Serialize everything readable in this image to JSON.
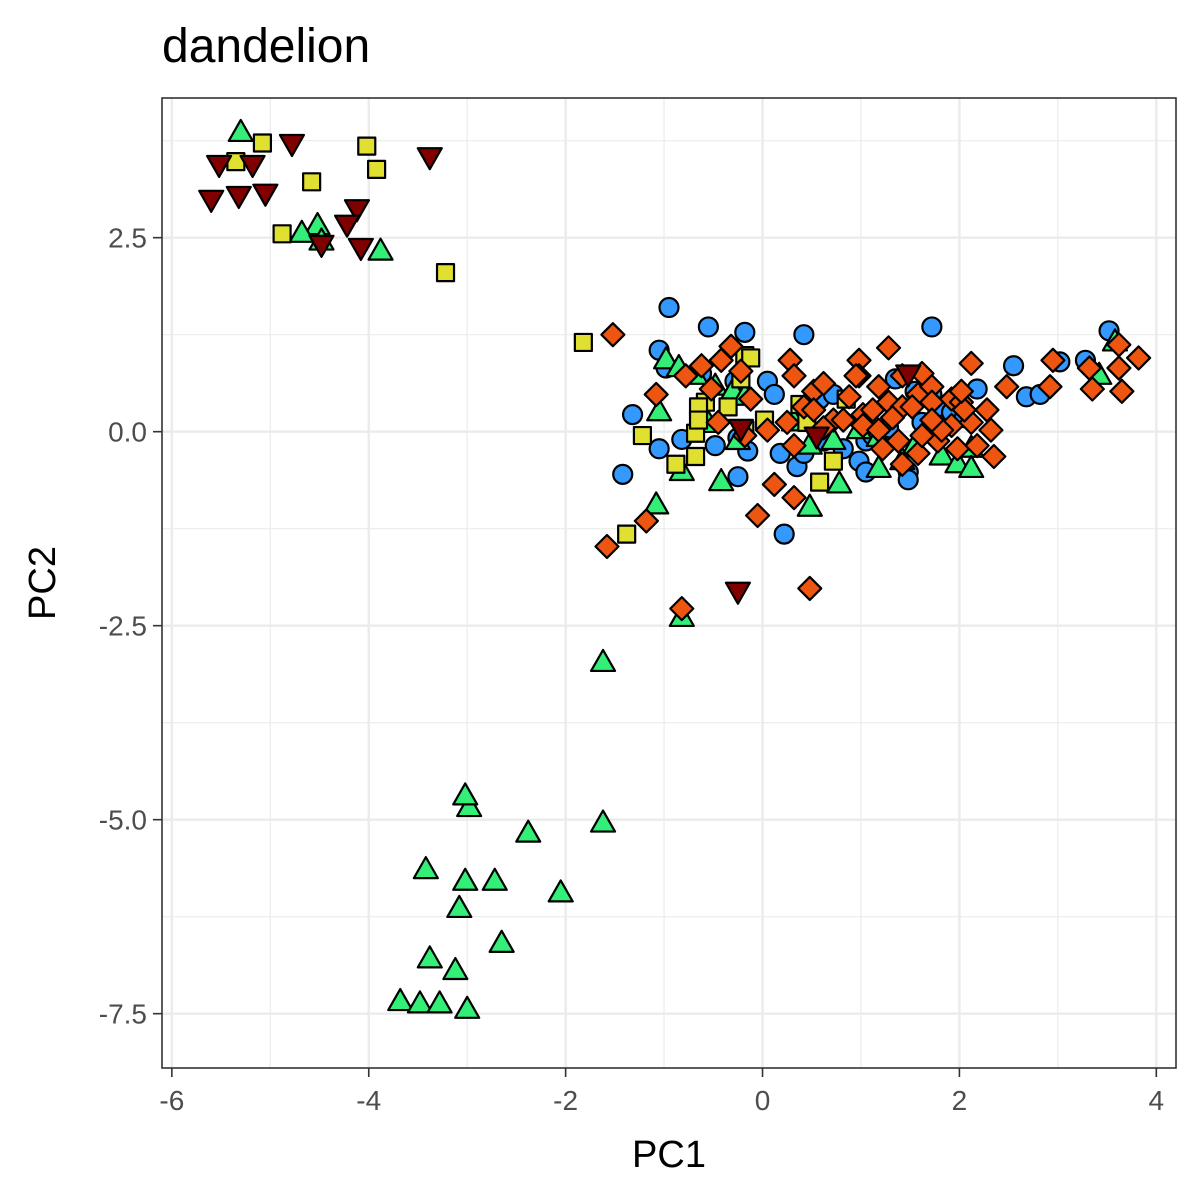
{
  "chart_data": {
    "type": "scatter",
    "title": "dandelion",
    "xlabel": "PC1",
    "ylabel": "PC2",
    "xlim": [
      -6.1,
      4.2
    ],
    "ylim": [
      -8.2,
      4.3
    ],
    "x_ticks": [
      -6,
      -4,
      -2,
      0,
      2,
      4
    ],
    "y_ticks": [
      2.5,
      0.0,
      -2.5,
      -5.0,
      -7.5
    ],
    "x_tick_labels": [
      "-6",
      "-4",
      "-2",
      "0",
      "2",
      "4"
    ],
    "y_tick_labels": [
      "2.5",
      "0.0",
      "-2.5",
      "-5.0",
      "-7.5"
    ],
    "grid": true,
    "legend": "none",
    "series": [
      {
        "shape": "circle",
        "color": "#3399ff",
        "x": [
          -0.95,
          -0.55,
          -0.18,
          0.42,
          1.72,
          -1.05,
          -0.98,
          -0.62,
          -0.28,
          0.05,
          0.12,
          0.58,
          0.72,
          1.35,
          1.55,
          1.72,
          2.18,
          2.55,
          2.68,
          2.82,
          3.02,
          3.28,
          3.52,
          -1.32,
          -1.05,
          -0.82,
          -0.48,
          -0.25,
          0.18,
          0.35,
          0.42,
          0.82,
          0.98,
          1.05,
          1.12,
          1.28,
          1.48,
          1.62,
          1.78,
          1.92,
          2.05,
          -1.42,
          -0.25,
          0.22,
          -0.15,
          0.62,
          1.05,
          1.48
        ],
        "y": [
          1.6,
          1.35,
          1.28,
          1.25,
          1.35,
          1.05,
          0.82,
          0.75,
          0.65,
          0.65,
          0.48,
          0.42,
          0.48,
          0.68,
          0.52,
          0.48,
          0.55,
          0.85,
          0.45,
          0.48,
          0.9,
          0.92,
          1.3,
          0.22,
          -0.22,
          -0.1,
          -0.18,
          -0.08,
          -0.28,
          -0.45,
          -0.28,
          -0.22,
          -0.38,
          -0.12,
          -0.05,
          0.05,
          -0.52,
          0.12,
          0.32,
          0.25,
          0.18,
          -0.55,
          -0.58,
          -1.32,
          -0.25,
          -0.12,
          -0.52,
          -0.62
        ]
      },
      {
        "shape": "triangle-up",
        "color": "#33ee77",
        "x": [
          -5.3,
          -4.52,
          -4.68,
          -4.48,
          -3.88,
          -0.98,
          -0.85,
          -0.68,
          -0.48,
          -0.3,
          -0.18,
          0.32,
          0.72,
          0.98,
          1.18,
          1.55,
          1.82,
          2.12,
          -1.05,
          -0.82,
          -0.42,
          -0.25,
          0.48,
          0.78,
          1.18,
          1.42,
          1.98,
          2.12,
          3.42,
          3.58,
          -1.08,
          -0.55,
          0.48,
          -0.82,
          -1.62,
          -2.98,
          -3.02,
          -2.38,
          -1.62,
          -3.42,
          -3.02,
          -2.72,
          -2.05,
          -3.08,
          -2.65,
          -3.38,
          -3.12,
          -3.68,
          -3.48,
          -3.28,
          -3.0
        ],
        "y": [
          3.85,
          2.65,
          2.55,
          2.45,
          2.32,
          0.92,
          0.82,
          0.72,
          0.58,
          0.52,
          0.45,
          0.12,
          -0.12,
          0.02,
          -0.08,
          -0.18,
          -0.32,
          -0.22,
          0.25,
          -0.52,
          -0.65,
          -0.12,
          -0.18,
          -0.68,
          -0.48,
          -0.38,
          -0.42,
          -0.48,
          0.72,
          1.15,
          -0.95,
          0.1,
          -0.98,
          -2.4,
          -2.98,
          -4.85,
          -4.7,
          -5.18,
          -5.05,
          -5.65,
          -5.8,
          -5.8,
          -5.95,
          -6.15,
          -6.6,
          -6.8,
          -6.95,
          -7.35,
          -7.38,
          -7.38,
          -7.45
        ]
      },
      {
        "shape": "square",
        "color": "#e0e030",
        "x": [
          -5.08,
          -5.35,
          -4.58,
          -4.02,
          -3.92,
          -4.88,
          -3.22,
          -1.82,
          -0.18,
          -0.12,
          -0.22,
          -0.58,
          -0.35,
          0.02,
          -1.22,
          -0.88,
          -0.68,
          -0.68,
          -0.65,
          -0.18,
          -1.38,
          0.38,
          0.58,
          0.72,
          -0.65,
          0.45,
          0.85
        ],
        "y": [
          3.72,
          3.48,
          3.22,
          3.68,
          3.38,
          2.55,
          2.05,
          1.15,
          0.98,
          0.95,
          0.68,
          0.38,
          0.32,
          0.15,
          -0.05,
          -0.42,
          -0.02,
          -0.32,
          0.32,
          0.02,
          -1.32,
          0.35,
          -0.65,
          -0.38,
          0.15,
          0.12,
          0.42
        ]
      },
      {
        "shape": "diamond",
        "color": "#ee5511",
        "x": [
          -1.52,
          -0.32,
          -0.42,
          -0.62,
          -0.22,
          0.28,
          0.98,
          1.28,
          1.42,
          1.62,
          2.12,
          2.48,
          2.95,
          3.32,
          3.62,
          3.82,
          -1.08,
          -0.78,
          -0.52,
          -0.12,
          0.32,
          0.52,
          0.62,
          0.88,
          0.98,
          1.18,
          1.28,
          1.42,
          1.58,
          1.72,
          1.92,
          2.02,
          2.28,
          3.35,
          3.65,
          -0.45,
          -0.18,
          0.05,
          0.25,
          0.42,
          0.72,
          1.02,
          1.12,
          1.32,
          1.52,
          1.72,
          1.92,
          2.12,
          2.32,
          0.32,
          0.52,
          0.62,
          0.82,
          1.02,
          1.18,
          1.38,
          1.58,
          1.78,
          1.98,
          2.18,
          2.35,
          0.12,
          -0.05,
          0.32,
          -1.18,
          -1.58,
          -0.82,
          0.48,
          0.95,
          1.22,
          1.42,
          1.62,
          1.82,
          2.05,
          1.72,
          2.02,
          2.92,
          3.62
        ],
        "y": [
          1.25,
          1.1,
          0.92,
          0.85,
          0.78,
          0.92,
          0.92,
          1.08,
          0.72,
          0.75,
          0.88,
          0.58,
          0.92,
          0.82,
          1.12,
          0.95,
          0.48,
          0.72,
          0.55,
          0.42,
          0.72,
          0.52,
          0.62,
          0.45,
          0.72,
          0.58,
          0.38,
          0.32,
          0.48,
          0.58,
          0.42,
          0.38,
          0.28,
          0.55,
          0.52,
          0.12,
          -0.05,
          0.02,
          0.12,
          0.32,
          0.15,
          0.22,
          0.28,
          0.18,
          0.32,
          0.38,
          0.08,
          0.12,
          0.02,
          -0.18,
          0.28,
          0.05,
          0.15,
          0.08,
          0.02,
          -0.12,
          -0.28,
          -0.12,
          -0.22,
          -0.18,
          -0.32,
          -0.68,
          -1.08,
          -0.85,
          -1.15,
          -1.48,
          -2.28,
          -2.02,
          0.72,
          -0.22,
          -0.42,
          -0.05,
          0.02,
          0.28,
          0.15,
          0.52,
          0.58,
          0.82
        ]
      },
      {
        "shape": "triangle-down",
        "color": "#800000",
        "x": [
          -5.52,
          -5.18,
          -4.78,
          -3.38,
          -5.6,
          -5.32,
          -5.05,
          -4.12,
          -4.22,
          -4.48,
          -4.08,
          -0.22,
          0.55,
          1.48,
          -0.25
        ],
        "y": [
          3.45,
          3.45,
          3.72,
          3.55,
          3.0,
          3.05,
          3.08,
          2.88,
          2.68,
          2.42,
          2.38,
          0.05,
          -0.05,
          0.75,
          -2.05
        ]
      }
    ]
  }
}
